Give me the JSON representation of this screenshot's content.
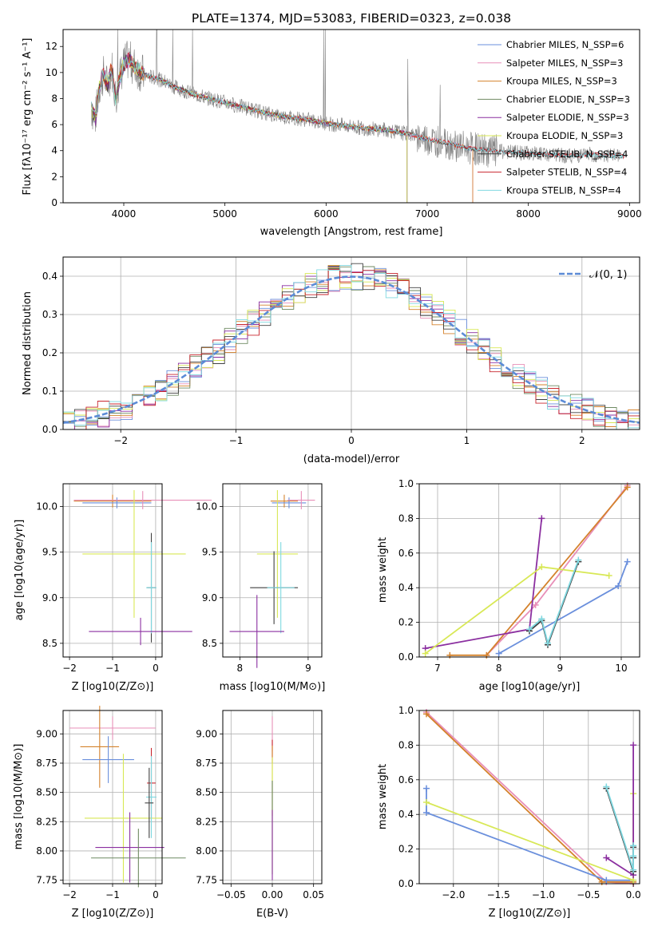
{
  "chart_data": [
    {
      "type": "line",
      "title": "PLATE=1374, MJD=53083, FIBERID=0323, z=0.038",
      "xlabel": "wavelength [Angstrom, rest frame]",
      "ylabel": "Flux [fλ10⁻¹⁷ erg cm⁻² s⁻¹ A⁻¹]",
      "xlim": [
        3400,
        9100
      ],
      "ylim": [
        0,
        13.3
      ],
      "xticks": [
        4000,
        5000,
        6000,
        7000,
        8000,
        9000
      ],
      "yticks": [
        0,
        2,
        4,
        6,
        8,
        10,
        12
      ],
      "grid": false,
      "legend_position": "top-right",
      "spectrum_color": "#808080",
      "spectrum_points": [
        [
          3680,
          7.2
        ],
        [
          3720,
          6.5
        ],
        [
          3760,
          9.0
        ],
        [
          3800,
          9.8
        ],
        [
          3840,
          9.0
        ],
        [
          3880,
          10.5
        ],
        [
          3920,
          8.0
        ],
        [
          3960,
          9.6
        ],
        [
          4000,
          10.6
        ],
        [
          4050,
          11.0
        ],
        [
          4100,
          10.5
        ],
        [
          4200,
          9.8
        ],
        [
          4300,
          9.6
        ],
        [
          4400,
          9.3
        ],
        [
          4500,
          8.9
        ],
        [
          4600,
          8.6
        ],
        [
          4700,
          8.3
        ],
        [
          4800,
          8.1
        ],
        [
          4900,
          7.9
        ],
        [
          5000,
          7.7
        ],
        [
          5200,
          7.3
        ],
        [
          5400,
          6.9
        ],
        [
          5600,
          6.6
        ],
        [
          5800,
          6.4
        ],
        [
          6000,
          6.1
        ],
        [
          6200,
          5.9
        ],
        [
          6400,
          5.7
        ],
        [
          6600,
          5.6
        ],
        [
          6800,
          5.3
        ],
        [
          7000,
          4.9
        ],
        [
          7200,
          4.6
        ],
        [
          7400,
          4.2
        ],
        [
          7600,
          4.0
        ],
        [
          7800,
          3.9
        ],
        [
          8000,
          3.8
        ],
        [
          8200,
          3.7
        ],
        [
          8400,
          3.6
        ],
        [
          8600,
          3.7
        ],
        [
          8800,
          3.6
        ],
        [
          8900,
          3.6
        ]
      ],
      "series": [
        {
          "name": "Chabrier MILES, N_SSP=6",
          "color": "#6a8fdc",
          "cutoff": 7450
        },
        {
          "name": "Salpeter MILES, N_SSP=3",
          "color": "#e88fb8",
          "cutoff": 7450
        },
        {
          "name": "Kroupa MILES, N_SSP=3",
          "color": "#d4822c",
          "cutoff": 7450
        },
        {
          "name": "Chabrier ELODIE, N_SSP=3",
          "color": "#6f8a62",
          "cutoff": 6800
        },
        {
          "name": "Salpeter ELODIE, N_SSP=3",
          "color": "#8b2fa0",
          "cutoff": 6800
        },
        {
          "name": "Kroupa ELODIE, N_SSP=3",
          "color": "#d8e856",
          "cutoff": 6800
        },
        {
          "name": "Chabrier STELIB, N_SSP=4",
          "color": "#404040",
          "cutoff": 8950
        },
        {
          "name": "Salpeter STELIB, N_SSP=4",
          "color": "#c8262e",
          "cutoff": 8950
        },
        {
          "name": "Kroupa STELIB, N_SSP=4",
          "color": "#7fd8e0",
          "cutoff": 8950
        }
      ]
    },
    {
      "type": "line",
      "xlabel": "(data-model)/error",
      "ylabel": "Normed distribution",
      "xlim": [
        -2.5,
        2.5
      ],
      "ylim": [
        0,
        0.45
      ],
      "xticks": [
        -2,
        -1,
        0,
        1,
        2
      ],
      "xtick_labels": [
        "−2",
        "−1",
        "0",
        "1",
        "2"
      ],
      "yticks": [
        0.0,
        0.1,
        0.2,
        0.3,
        0.4
      ],
      "grid": true,
      "legend": "𝒩(0, 1)",
      "legend_position": "top-right",
      "gaussian": {
        "mean": 0,
        "sigma": 1,
        "color": "#5b8bd6"
      },
      "series_colors": [
        "#6a8fdc",
        "#e88fb8",
        "#d4822c",
        "#6f8a62",
        "#8b2fa0",
        "#d8e856",
        "#404040",
        "#c8262e",
        "#7fd8e0"
      ]
    },
    {
      "type": "scatter",
      "xlabel": "Z [log10(Z/Z⊙)]",
      "ylabel": "age  [log10(age/yr)]",
      "xlim": [
        -2.15,
        0.15
      ],
      "ylim": [
        8.35,
        10.25
      ],
      "xticks": [
        -2,
        -1,
        0
      ],
      "xtick_labels": [
        "−2",
        "−1",
        "0"
      ],
      "yticks": [
        8.5,
        9.0,
        9.5,
        10.0
      ],
      "grid": true,
      "points": [
        {
          "x": -1.0,
          "y": 10.06,
          "xerr": 0.9,
          "yerr": 0.07,
          "color": "#d4822c"
        },
        {
          "x": -0.9,
          "y": 10.04,
          "xerr": 0.8,
          "yerr": 0.06,
          "color": "#6a8fdc"
        },
        {
          "x": -0.3,
          "y": 10.07,
          "xerr": 1.6,
          "yerr": 0.1,
          "color": "#e88fb8"
        },
        {
          "x": -0.5,
          "y": 9.48,
          "xerr": 1.2,
          "yerr": 0.7,
          "color": "#d8e856"
        },
        {
          "x": -0.1,
          "y": 9.11,
          "xerr": 0.1,
          "yerr": 0.6,
          "color": "#404040"
        },
        {
          "x": -0.1,
          "y": 9.11,
          "xerr": 0.12,
          "yerr": 0.5,
          "color": "#7fd8e0"
        },
        {
          "x": -0.35,
          "y": 8.63,
          "xerr": 1.2,
          "yerr": 0.15,
          "color": "#8b2fa0"
        }
      ]
    },
    {
      "type": "scatter",
      "xlabel": "mass [log10(M/M⊙)]",
      "xlim": [
        7.75,
        9.2
      ],
      "ylim": [
        8.35,
        10.25
      ],
      "xticks": [
        8,
        9
      ],
      "yticks": [
        8.5,
        9.0,
        9.5,
        10.0
      ],
      "grid": true,
      "points": [
        {
          "x": 8.65,
          "y": 10.06,
          "xerr": 0.2,
          "yerr": 0.07,
          "color": "#d4822c"
        },
        {
          "x": 8.72,
          "y": 10.04,
          "xerr": 0.25,
          "yerr": 0.06,
          "color": "#6a8fdc"
        },
        {
          "x": 8.9,
          "y": 10.07,
          "xerr": 0.2,
          "yerr": 0.1,
          "color": "#e88fb8"
        },
        {
          "x": 8.55,
          "y": 9.48,
          "xerr": 0.3,
          "yerr": 0.7,
          "color": "#d8e856"
        },
        {
          "x": 8.5,
          "y": 9.11,
          "xerr": 0.35,
          "yerr": 0.4,
          "color": "#404040"
        },
        {
          "x": 8.6,
          "y": 9.11,
          "xerr": 0.2,
          "yerr": 0.5,
          "color": "#7fd8e0"
        },
        {
          "x": 8.25,
          "y": 8.63,
          "xerr": 0.4,
          "yerr": 0.4,
          "color": "#8b2fa0"
        }
      ]
    },
    {
      "type": "line",
      "xlabel": "age  [log10(age/yr)]",
      "ylabel": "mass weight",
      "xlim": [
        6.7,
        10.3
      ],
      "ylim": [
        0,
        1.0
      ],
      "xticks": [
        7,
        8,
        9,
        10
      ],
      "yticks": [
        0.0,
        0.2,
        0.4,
        0.6,
        0.8,
        1.0
      ],
      "grid": true,
      "series": [
        {
          "color": "#e88fb8",
          "x": [
            7.8,
            8.6,
            10.1
          ],
          "y": [
            0.01,
            0.3,
            0.99
          ]
        },
        {
          "color": "#d4822c",
          "x": [
            7.2,
            7.8,
            10.1
          ],
          "y": [
            0.01,
            0.01,
            0.98
          ]
        },
        {
          "color": "#6a8fdc",
          "x": [
            8.0,
            9.95,
            10.1
          ],
          "y": [
            0.02,
            0.41,
            0.55
          ]
        },
        {
          "color": "#8b2fa0",
          "x": [
            6.8,
            8.5,
            8.7
          ],
          "y": [
            0.05,
            0.16,
            0.8
          ]
        },
        {
          "color": "#d8e856",
          "x": [
            6.8,
            8.7,
            9.8
          ],
          "y": [
            0.02,
            0.52,
            0.47
          ]
        },
        {
          "color": "#404040",
          "x": [
            8.5,
            8.7,
            8.8,
            9.3
          ],
          "y": [
            0.15,
            0.21,
            0.07,
            0.55
          ]
        },
        {
          "color": "#7fd8e0",
          "x": [
            8.5,
            8.7,
            8.8,
            9.3
          ],
          "y": [
            0.16,
            0.22,
            0.08,
            0.56
          ]
        }
      ]
    },
    {
      "type": "scatter",
      "xlabel": "Z [log10(Z/Z⊙)]",
      "ylabel": "mass [log10(M/M⊙)]",
      "xlim": [
        -2.15,
        0.15
      ],
      "ylim": [
        7.72,
        9.2
      ],
      "xticks": [
        -2,
        -1,
        0
      ],
      "xtick_labels": [
        "−2",
        "−1",
        "0"
      ],
      "yticks": [
        7.75,
        8.0,
        8.25,
        8.5,
        8.75,
        9.0
      ],
      "grid": true,
      "points": [
        {
          "x": -1.0,
          "y": 9.05,
          "xerr": 1.0,
          "yerr": 0.1,
          "color": "#e88fb8"
        },
        {
          "x": -1.3,
          "y": 8.89,
          "xerr": 0.45,
          "yerr": 0.35,
          "color": "#d4822c"
        },
        {
          "x": -1.1,
          "y": 8.78,
          "xerr": 0.6,
          "yerr": 0.2,
          "color": "#6a8fdc"
        },
        {
          "x": -0.75,
          "y": 8.28,
          "xerr": 0.9,
          "yerr": 0.55,
          "color": "#d8e856"
        },
        {
          "x": -0.1,
          "y": 8.58,
          "xerr": 0.1,
          "yerr": 0.3,
          "color": "#c8262e"
        },
        {
          "x": -0.1,
          "y": 8.46,
          "xerr": 0.12,
          "yerr": 0.35,
          "color": "#7fd8e0"
        },
        {
          "x": -0.15,
          "y": 8.41,
          "xerr": 0.1,
          "yerr": 0.3,
          "color": "#404040"
        },
        {
          "x": -0.6,
          "y": 8.03,
          "xerr": 0.8,
          "yerr": 0.3,
          "color": "#8b2fa0"
        },
        {
          "x": -0.4,
          "y": 7.94,
          "xerr": 1.1,
          "yerr": 0.25,
          "color": "#6f8a62"
        }
      ]
    },
    {
      "type": "scatter",
      "xlabel": "E(B-V)",
      "xlim": [
        -0.06,
        0.06
      ],
      "ylim": [
        7.72,
        9.2
      ],
      "xticks": [
        -0.05,
        0.0,
        0.05
      ],
      "xtick_labels": [
        "−0.05",
        "0.00",
        "0.05"
      ],
      "yticks": [
        7.75,
        8.0,
        8.25,
        8.5,
        8.75,
        9.0
      ],
      "grid": true,
      "points": [
        {
          "x": 0,
          "y": 9.0,
          "xerr": 0,
          "yerr": 0.15,
          "color": "#e88fb8"
        },
        {
          "x": 0,
          "y": 8.85,
          "xerr": 0,
          "yerr": 0.1,
          "color": "#c8262e"
        },
        {
          "x": 0,
          "y": 8.6,
          "xerr": 0,
          "yerr": 0.3,
          "color": "#d4822c"
        },
        {
          "x": 0,
          "y": 8.3,
          "xerr": 0,
          "yerr": 0.5,
          "color": "#d8e856"
        },
        {
          "x": 0,
          "y": 8.2,
          "xerr": 0,
          "yerr": 0.4,
          "color": "#6f8a62"
        },
        {
          "x": 0,
          "y": 8.05,
          "xerr": 0,
          "yerr": 0.3,
          "color": "#8b2fa0"
        }
      ]
    },
    {
      "type": "line",
      "xlabel": "Z [log10(Z/Z⊙)]",
      "ylabel": "mass weight",
      "xlim": [
        -2.38,
        0.07
      ],
      "ylim": [
        0,
        1.0
      ],
      "xticks": [
        -2.0,
        -1.5,
        -1.0,
        -0.5,
        0.0
      ],
      "xtick_labels": [
        "−2.0",
        "−1.5",
        "−1.0",
        "−0.5",
        "0.0"
      ],
      "yticks": [
        0.0,
        0.2,
        0.4,
        0.6,
        0.8,
        1.0
      ],
      "grid": true,
      "series": [
        {
          "color": "#e88fb8",
          "x": [
            -2.3,
            -0.3,
            0.0
          ],
          "y": [
            0.99,
            0.01,
            0.0
          ]
        },
        {
          "color": "#d4822c",
          "x": [
            -2.3,
            -0.35,
            0.0
          ],
          "y": [
            0.98,
            0.01,
            0.01
          ]
        },
        {
          "color": "#6a8fdc",
          "x": [
            -2.3,
            -2.3,
            -0.3,
            0.0
          ],
          "y": [
            0.55,
            0.41,
            0.02,
            0.02
          ]
        },
        {
          "color": "#d8e856",
          "x": [
            -2.3,
            0.0,
            0.0
          ],
          "y": [
            0.47,
            0.02,
            0.52
          ]
        },
        {
          "color": "#8b2fa0",
          "x": [
            -0.3,
            0.0,
            0.0
          ],
          "y": [
            0.15,
            0.05,
            0.8
          ]
        },
        {
          "color": "#404040",
          "x": [
            -0.3,
            0.0,
            0.0,
            0.0
          ],
          "y": [
            0.55,
            0.07,
            0.21,
            0.15
          ]
        },
        {
          "color": "#7fd8e0",
          "x": [
            -0.3,
            0.0,
            0.0,
            0.0
          ],
          "y": [
            0.56,
            0.08,
            0.22,
            0.16
          ]
        }
      ]
    }
  ]
}
